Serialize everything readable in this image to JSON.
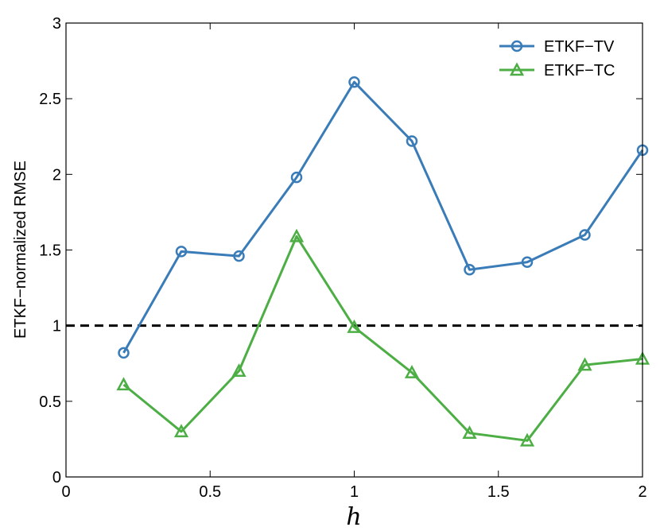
{
  "chart_data": {
    "type": "line",
    "title": "",
    "xlabel": "h",
    "ylabel": "ETKF−normalized RMSE",
    "xlim": [
      0,
      2
    ],
    "ylim": [
      0,
      3
    ],
    "x_ticks": [
      "0",
      "0.5",
      "1",
      "1.5",
      "2"
    ],
    "y_ticks": [
      "0",
      "0.5",
      "1",
      "1.5",
      "2",
      "2.5",
      "3"
    ],
    "x": [
      0.2,
      0.4,
      0.6,
      0.8,
      1.0,
      1.2,
      1.4,
      1.6,
      1.8,
      2.0
    ],
    "series": [
      {
        "name": "ETKF−TV",
        "marker": "circle",
        "color": "#3a7cb7",
        "values": [
          0.82,
          1.49,
          1.46,
          1.98,
          2.61,
          2.22,
          1.37,
          1.42,
          1.6,
          2.16
        ]
      },
      {
        "name": "ETKF−TC",
        "marker": "triangle",
        "color": "#4cae44",
        "values": [
          0.61,
          0.3,
          0.7,
          1.59,
          0.99,
          0.69,
          0.29,
          0.24,
          0.74,
          0.78
        ]
      }
    ],
    "reference_line": {
      "y": 1,
      "style": "dashed",
      "color": "#000000"
    },
    "legend_position": "top-right",
    "grid": false
  }
}
